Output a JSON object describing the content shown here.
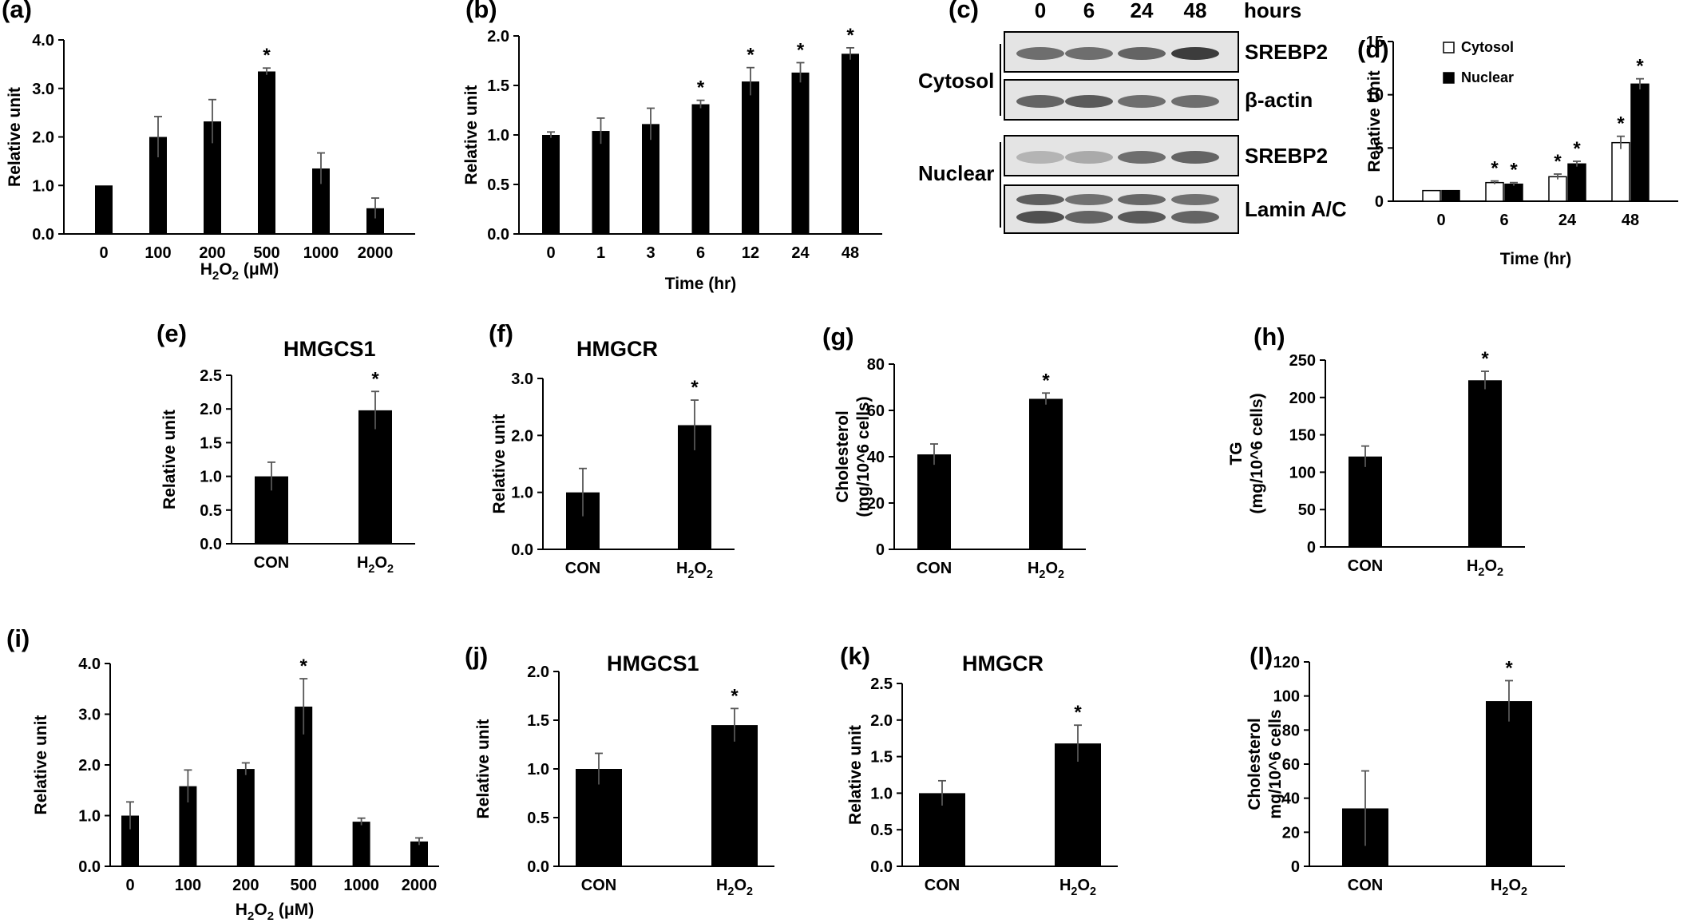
{
  "figure_background": "#ffffff",
  "bar_color": "#000000",
  "chart_data": [
    {
      "type": "bar",
      "panel": "(a)",
      "title": "",
      "categories": [
        "0",
        "100",
        "200",
        "500",
        "1000",
        "2000"
      ],
      "series": [
        {
          "values": [
            1.0,
            2.0,
            2.32,
            3.35,
            1.35,
            0.53
          ],
          "errors": [
            0.0,
            0.42,
            0.45,
            0.07,
            0.32,
            0.21
          ]
        }
      ],
      "significant": [
        false,
        false,
        false,
        true,
        false,
        false
      ],
      "xlabel": "H2O2 (μM)",
      "ylabel": "Relative unit",
      "ylim": [
        0,
        4
      ],
      "yticks": [
        "0.0",
        "1.0",
        "2.0",
        "3.0",
        "4.0"
      ],
      "grid": false
    },
    {
      "type": "bar",
      "panel": "(b)",
      "title": "",
      "categories": [
        "0",
        "1",
        "3",
        "6",
        "12",
        "24",
        "48"
      ],
      "series": [
        {
          "values": [
            1.0,
            1.04,
            1.11,
            1.31,
            1.54,
            1.63,
            1.82
          ],
          "errors": [
            0.03,
            0.13,
            0.16,
            0.04,
            0.14,
            0.1,
            0.06
          ]
        }
      ],
      "significant": [
        false,
        false,
        false,
        true,
        true,
        true,
        true
      ],
      "xlabel": "Time (hr)",
      "ylabel": "Relative unit",
      "ylim": [
        0,
        2
      ],
      "yticks": [
        "0.0",
        "0.5",
        "1.0",
        "1.5",
        "2.0"
      ],
      "grid": false
    },
    {
      "type": "bar",
      "panel": "(d)",
      "title": "",
      "categories": [
        "0",
        "6",
        "24",
        "48"
      ],
      "series": [
        {
          "name": "Cytosol",
          "values": [
            1.0,
            1.75,
            2.3,
            5.5
          ],
          "errors": [
            0.0,
            0.15,
            0.25,
            0.6
          ],
          "color": "#ffffff"
        },
        {
          "name": "Nuclear",
          "values": [
            1.0,
            1.6,
            3.5,
            11.0
          ],
          "errors": [
            0.0,
            0.15,
            0.25,
            0.5
          ],
          "color": "#000000"
        }
      ],
      "significant": [
        [
          false,
          true,
          true,
          true
        ],
        [
          false,
          true,
          true,
          true
        ]
      ],
      "xlabel": "Time (hr)",
      "ylabel": "Relative Unit",
      "ylim": [
        0,
        15
      ],
      "yticks": [
        "0",
        "5",
        "10",
        "15"
      ],
      "legend": "top-right",
      "grid": false
    },
    {
      "type": "bar",
      "panel": "(e)",
      "title": "HMGCS1",
      "categories": [
        "CON",
        "H2O2"
      ],
      "series": [
        {
          "values": [
            1.0,
            1.98
          ],
          "errors": [
            0.21,
            0.28
          ]
        }
      ],
      "significant": [
        false,
        true
      ],
      "xlabel": "",
      "ylabel": "Relative unit",
      "ylim": [
        0,
        2.5
      ],
      "yticks": [
        "0.0",
        "0.5",
        "1.0",
        "1.5",
        "2.0",
        "2.5"
      ],
      "grid": false
    },
    {
      "type": "bar",
      "panel": "(f)",
      "title": "HMGCR",
      "categories": [
        "CON",
        "H2O2"
      ],
      "series": [
        {
          "values": [
            1.0,
            2.18
          ],
          "errors": [
            0.42,
            0.44
          ]
        }
      ],
      "significant": [
        false,
        true
      ],
      "xlabel": "",
      "ylabel": "Relative unit",
      "ylim": [
        0,
        3
      ],
      "yticks": [
        "0.0",
        "1.0",
        "2.0",
        "3.0"
      ],
      "grid": false
    },
    {
      "type": "bar",
      "panel": "(g)",
      "title": "",
      "categories": [
        "CON",
        "H2O2"
      ],
      "series": [
        {
          "values": [
            41,
            65
          ],
          "errors": [
            4.5,
            2.5
          ]
        }
      ],
      "significant": [
        false,
        true
      ],
      "xlabel": "",
      "ylabel": "Cholesterol",
      "ylabel2": "(mg/10^6 cells)",
      "ylim": [
        0,
        80
      ],
      "yticks": [
        "0",
        "20",
        "40",
        "60",
        "80"
      ],
      "grid": false
    },
    {
      "type": "bar",
      "panel": "(h)",
      "title": "",
      "categories": [
        "CON",
        "H2O2"
      ],
      "series": [
        {
          "values": [
            121,
            223
          ],
          "errors": [
            14,
            12
          ]
        }
      ],
      "significant": [
        false,
        true
      ],
      "xlabel": "",
      "ylabel": "TG",
      "ylabel2": "(mg/10^6 cells)",
      "ylim": [
        0,
        250
      ],
      "yticks": [
        "0",
        "50",
        "100",
        "150",
        "200",
        "250"
      ],
      "grid": false
    },
    {
      "type": "bar",
      "panel": "(i)",
      "title": "",
      "categories": [
        "0",
        "100",
        "200",
        "500",
        "1000",
        "2000"
      ],
      "series": [
        {
          "values": [
            1.0,
            1.58,
            1.92,
            3.15,
            0.88,
            0.49
          ],
          "errors": [
            0.27,
            0.32,
            0.12,
            0.55,
            0.07,
            0.07
          ]
        }
      ],
      "significant": [
        false,
        false,
        false,
        true,
        false,
        false
      ],
      "xlabel": "H2O2 (μM)",
      "ylabel": "Relative unit",
      "ylim": [
        0,
        4
      ],
      "yticks": [
        "0.0",
        "1.0",
        "2.0",
        "3.0",
        "4.0"
      ],
      "grid": false
    },
    {
      "type": "bar",
      "panel": "(j)",
      "title": "HMGCS1",
      "categories": [
        "CON",
        "H2O2"
      ],
      "series": [
        {
          "values": [
            1.0,
            1.45
          ],
          "errors": [
            0.16,
            0.17
          ]
        }
      ],
      "significant": [
        false,
        true
      ],
      "xlabel": "",
      "ylabel": "Relative unit",
      "ylim": [
        0,
        2
      ],
      "yticks": [
        "0.0",
        "0.5",
        "1.0",
        "1.5",
        "2.0"
      ],
      "grid": false
    },
    {
      "type": "bar",
      "panel": "(k)",
      "title": "HMGCR",
      "categories": [
        "CON",
        "H2O2"
      ],
      "series": [
        {
          "values": [
            1.0,
            1.68
          ],
          "errors": [
            0.17,
            0.25
          ]
        }
      ],
      "significant": [
        false,
        true
      ],
      "xlabel": "",
      "ylabel": "Relative unit",
      "ylim": [
        0,
        2.5
      ],
      "yticks": [
        "0.0",
        "0.5",
        "1.0",
        "1.5",
        "2.0",
        "2.5"
      ],
      "grid": false
    },
    {
      "type": "bar",
      "panel": "(l)",
      "title": "",
      "categories": [
        "CON",
        "H2O2"
      ],
      "series": [
        {
          "values": [
            34,
            97
          ],
          "errors": [
            22,
            12
          ]
        }
      ],
      "significant": [
        false,
        true
      ],
      "xlabel": "",
      "ylabel": "Cholesterol",
      "ylabel2": "mg/10^6 cells",
      "ylim": [
        0,
        120
      ],
      "yticks": [
        "0",
        "20",
        "40",
        "60",
        "80",
        "100",
        "120"
      ],
      "grid": false
    }
  ],
  "blot": {
    "panel": "(c)",
    "unit_label": "hours",
    "lanes": [
      "0",
      "6",
      "24",
      "48"
    ],
    "groups": [
      "Cytosol",
      "Nuclear"
    ],
    "rows": [
      {
        "label": "SREBP2",
        "group": "Cytosol",
        "intensity": [
          0.55,
          0.55,
          0.6,
          0.8
        ]
      },
      {
        "label": "β-actin",
        "group": "Cytosol",
        "intensity": [
          0.6,
          0.65,
          0.55,
          0.55
        ]
      },
      {
        "label": "SREBP2",
        "group": "Nuclear",
        "intensity": [
          0.2,
          0.25,
          0.55,
          0.6
        ]
      },
      {
        "label": "Lamin A/C",
        "group": "Nuclear",
        "intensity": [
          0.7,
          0.6,
          0.65,
          0.6
        ]
      }
    ]
  }
}
